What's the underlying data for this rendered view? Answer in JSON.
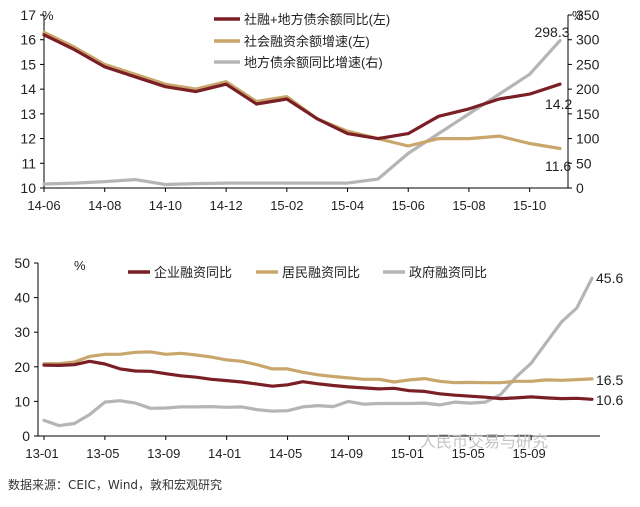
{
  "source_note": "数据来源：CEIC，Wind，敦和宏观研究",
  "watermark": "人民币交易与研究",
  "colors": {
    "dark_red": "#7a1f25",
    "tan": "#c9a76c",
    "gray": "#b5b5b5"
  },
  "chart_data": [
    {
      "type": "line",
      "left_unit": "%",
      "right_unit": "%",
      "ylim_left": [
        10,
        17
      ],
      "yticks_left": [
        "10",
        "11",
        "12",
        "13",
        "14",
        "15",
        "16",
        "17"
      ],
      "ylim_right": [
        0,
        350
      ],
      "yticks_right": [
        "0",
        "50",
        "100",
        "150",
        "200",
        "250",
        "300",
        "350"
      ],
      "x_tick_labels": [
        "14-06",
        "14-08",
        "14-10",
        "14-12",
        "15-02",
        "15-04",
        "15-06",
        "15-08",
        "15-10"
      ],
      "legend_position": "top-right",
      "series": [
        {
          "name": "社融+地方债余额同比(左)",
          "axis": "left",
          "color": "dark_red",
          "values": [
            16.2,
            15.6,
            14.9,
            14.5,
            14.1,
            13.9,
            14.2,
            13.4,
            13.6,
            12.8,
            12.2,
            12.0,
            12.2,
            12.9,
            13.2,
            13.6,
            13.8,
            14.2
          ]
        },
        {
          "name": "社会融资余额增速(左)",
          "axis": "left",
          "color": "tan",
          "values": [
            16.3,
            15.7,
            15.0,
            14.6,
            14.2,
            14.0,
            14.3,
            13.5,
            13.7,
            12.8,
            12.3,
            12.0,
            11.7,
            12.0,
            12.0,
            12.1,
            11.8,
            11.6
          ]
        },
        {
          "name": "地方债余额同比增速(右)",
          "axis": "right",
          "color": "gray",
          "values": [
            8,
            10,
            13,
            17,
            7,
            9,
            10,
            10,
            10,
            10,
            10,
            18,
            70,
            110,
            150,
            190,
            230,
            298.3
          ]
        }
      ],
      "end_labels": [
        "14.2",
        "11.6",
        "298.3"
      ]
    },
    {
      "type": "line",
      "left_unit": "%",
      "ylim": [
        0,
        50
      ],
      "yticks": [
        "0",
        "10",
        "20",
        "30",
        "40",
        "50"
      ],
      "x_tick_labels": [
        "13-01",
        "13-05",
        "13-09",
        "14-01",
        "14-05",
        "14-09",
        "15-01",
        "15-05",
        "15-09"
      ],
      "legend_position": "top",
      "series": [
        {
          "name": "企业融资同比",
          "color": "dark_red",
          "values": [
            20.5,
            20.4,
            20.6,
            21.6,
            20.8,
            19.4,
            18.8,
            18.7,
            18.0,
            17.4,
            17.0,
            16.4,
            16.0,
            15.6,
            15.0,
            14.4,
            14.8,
            15.7,
            15.1,
            14.6,
            14.2,
            13.9,
            13.6,
            13.8,
            13.1,
            12.9,
            12.2,
            11.8,
            11.5,
            11.2,
            10.8,
            11.0,
            11.3,
            11.0,
            10.8,
            10.9,
            10.6
          ]
        },
        {
          "name": "居民融资同比",
          "color": "tan",
          "values": [
            20.9,
            20.9,
            21.4,
            23.0,
            23.6,
            23.6,
            24.2,
            24.3,
            23.6,
            23.9,
            23.4,
            22.8,
            22.0,
            21.6,
            20.6,
            19.4,
            19.4,
            18.4,
            17.7,
            17.2,
            16.8,
            16.4,
            16.4,
            15.6,
            16.2,
            16.6,
            15.8,
            15.4,
            15.5,
            15.4,
            15.4,
            15.8,
            15.8,
            16.2,
            16.1,
            16.3,
            16.5
          ]
        },
        {
          "name": "政府融资同比",
          "color": "gray",
          "values": [
            4.5,
            3.0,
            3.6,
            6.2,
            9.8,
            10.2,
            9.5,
            8.0,
            8.1,
            8.4,
            8.4,
            8.5,
            8.3,
            8.4,
            7.6,
            7.2,
            7.3,
            8.4,
            8.8,
            8.5,
            10.0,
            9.2,
            9.4,
            9.4,
            9.4,
            9.5,
            9.0,
            9.8,
            9.5,
            9.8,
            12.0,
            17.0,
            21.0,
            27.0,
            33.0,
            37.0,
            45.6
          ]
        }
      ],
      "end_labels": [
        "16.5",
        "10.6",
        "45.6"
      ]
    }
  ]
}
